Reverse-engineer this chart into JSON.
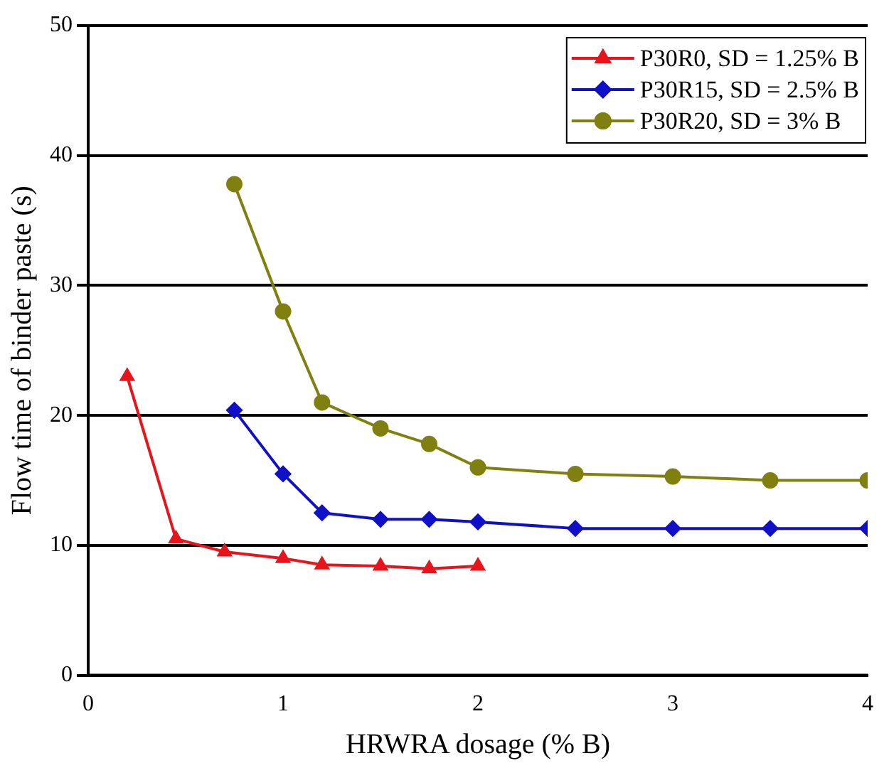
{
  "chart_data": {
    "type": "line",
    "xlabel": "HRWRA dosage (% B)",
    "ylabel": "Flow time of binder paste (s)",
    "xlim": [
      0,
      4
    ],
    "xticks": [
      0,
      1,
      2,
      3,
      4
    ],
    "ylim": [
      0,
      50
    ],
    "yticks": [
      0,
      10,
      20,
      30,
      40,
      50
    ],
    "grid": "y",
    "legend": "top right",
    "line_style": "solid",
    "series": [
      {
        "name": "P30R0, SD = 1.25% B",
        "color": "#e8141c",
        "marker": "triangle",
        "x": [
          0.2,
          0.45,
          0.7,
          1,
          1.2,
          1.5,
          1.75,
          2
        ],
        "values": [
          23,
          10.5,
          9.5,
          9,
          8.5,
          8.4,
          8.2,
          8.4
        ]
      },
      {
        "name": "P30R15, SD = 2.5% B",
        "color": "#1010c8",
        "marker": "diamond",
        "x": [
          0.75,
          1,
          1.2,
          1.5,
          1.75,
          2,
          2.5,
          3,
          3.5,
          4
        ],
        "values": [
          20.4,
          15.5,
          12.5,
          12,
          12,
          11.8,
          11.3,
          11.3,
          11.3,
          11.3
        ]
      },
      {
        "name": "P30R20, SD = 3% B",
        "color": "#808010",
        "marker": "circle",
        "x": [
          0.75,
          1,
          1.2,
          1.5,
          1.75,
          2,
          2.5,
          3,
          3.5,
          4
        ],
        "values": [
          37.8,
          28,
          21,
          19,
          17.8,
          16,
          15.5,
          15.3,
          15,
          15
        ]
      }
    ]
  }
}
